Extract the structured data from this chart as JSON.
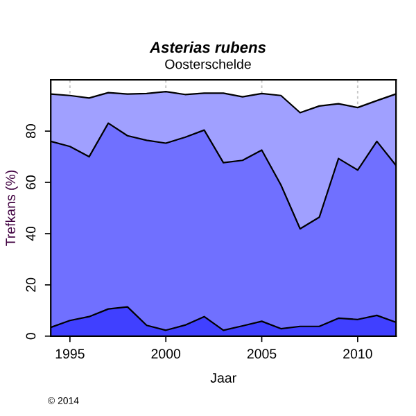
{
  "chart_data": {
    "type": "area",
    "title": "Asterias rubens",
    "subtitle": "Oosterschelde",
    "xlabel": "Jaar",
    "ylabel": "Trefkans (%)",
    "annotations": [
      "© 2014"
    ],
    "stacked": true,
    "x": [
      1994,
      1995,
      1996,
      1997,
      1998,
      1999,
      2000,
      2001,
      2002,
      2003,
      2004,
      2005,
      2006,
      2007,
      2008,
      2009,
      2010,
      2011,
      2012
    ],
    "series": [
      {
        "color": "#4040ff",
        "values": [
          3.4,
          6.1,
          7.6,
          10.6,
          11.4,
          4.2,
          2.3,
          4.3,
          7.6,
          2.3,
          4.0,
          5.8,
          2.9,
          3.8,
          3.8,
          7.0,
          6.5,
          8.1,
          5.4
        ]
      },
      {
        "color": "#7070ff",
        "values": [
          72.6,
          67.9,
          62.4,
          72.5,
          66.8,
          72.2,
          73.0,
          73.3,
          72.8,
          65.4,
          64.6,
          66.8,
          56.1,
          38.1,
          42.6,
          62.3,
          58.3,
          67.9,
          61.2
        ]
      },
      {
        "color": "#a0a0ff",
        "values": [
          18.5,
          19.9,
          22.9,
          11.9,
          16.3,
          18.3,
          20.1,
          16.7,
          14.4,
          27.1,
          24.8,
          22.1,
          34.9,
          45.3,
          43.4,
          21.4,
          24.4,
          15.9,
          27.9
        ]
      }
    ],
    "xlim": [
      1994,
      2012
    ],
    "xticks": [
      1995,
      2000,
      2005,
      2010
    ],
    "ylim": [
      0,
      100
    ],
    "yticks": [
      0,
      20,
      40,
      60,
      80
    ],
    "grid": "x",
    "legend": false
  }
}
